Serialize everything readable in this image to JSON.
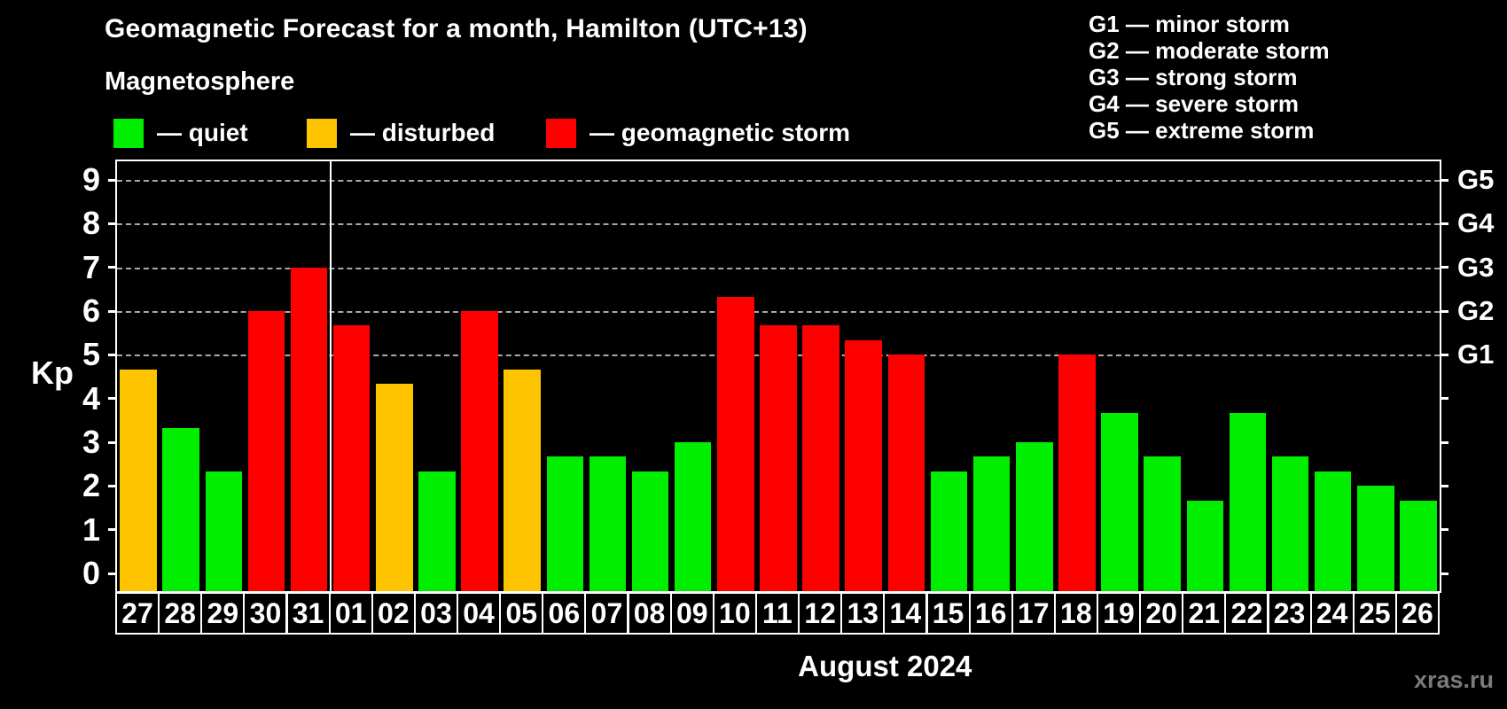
{
  "header": {
    "title": "Geomagnetic Forecast for a month, Hamilton (UTC+13)",
    "subtitle": "Magnetosphere"
  },
  "series_legend": {
    "items": [
      {
        "status": "quiet",
        "label": "— quiet",
        "color": "#00EE00"
      },
      {
        "status": "disturbed",
        "label": "— disturbed",
        "color": "#FFC400"
      },
      {
        "status": "storm",
        "label": "— geomagnetic storm",
        "color": "#FF0000"
      }
    ]
  },
  "storm_scale_legend": {
    "items": [
      {
        "text": "G1 — minor storm"
      },
      {
        "text": "G2 — moderate storm"
      },
      {
        "text": "G3 — strong storm"
      },
      {
        "text": "G4 — severe storm"
      },
      {
        "text": "G5 — extreme storm"
      }
    ]
  },
  "chart_data": {
    "type": "bar",
    "title": "Geomagnetic Forecast for a month, Hamilton (UTC+13)",
    "ylabel": "Kp",
    "xlabel": "August 2024",
    "ylim": [
      -0.4,
      9.45
    ],
    "yticks": [
      0,
      1,
      2,
      3,
      4,
      5,
      6,
      7,
      8,
      9
    ],
    "gridlines_at": [
      5,
      6,
      7,
      8,
      9
    ],
    "grid": "dashed horizontal lines at storm levels only",
    "right_axis_labels": [
      {
        "kp": 5,
        "label": "G1"
      },
      {
        "kp": 6,
        "label": "G2"
      },
      {
        "kp": 7,
        "label": "G3"
      },
      {
        "kp": 8,
        "label": "G4"
      },
      {
        "kp": 9,
        "label": "G5"
      }
    ],
    "month_separator_after": "31",
    "categories": [
      "27",
      "28",
      "29",
      "30",
      "31",
      "01",
      "02",
      "03",
      "04",
      "05",
      "06",
      "07",
      "08",
      "09",
      "10",
      "11",
      "12",
      "13",
      "14",
      "15",
      "16",
      "17",
      "18",
      "19",
      "20",
      "21",
      "22",
      "23",
      "24",
      "25",
      "26"
    ],
    "values": [
      4.67,
      3.33,
      2.33,
      6,
      7,
      5.67,
      4.33,
      2.33,
      6,
      4.67,
      2.67,
      2.67,
      2.33,
      3,
      6.33,
      5.67,
      5.67,
      5.33,
      5,
      2.33,
      2.67,
      3,
      5,
      3.67,
      2.67,
      1.67,
      3.67,
      2.67,
      2.33,
      2,
      1.67
    ],
    "statuses": [
      "disturbed",
      "quiet",
      "quiet",
      "storm",
      "storm",
      "storm",
      "disturbed",
      "quiet",
      "storm",
      "disturbed",
      "quiet",
      "quiet",
      "quiet",
      "quiet",
      "storm",
      "storm",
      "storm",
      "storm",
      "storm",
      "quiet",
      "quiet",
      "quiet",
      "storm",
      "quiet",
      "quiet",
      "quiet",
      "quiet",
      "quiet",
      "quiet",
      "quiet",
      "quiet"
    ],
    "status_colors": {
      "quiet": "#00EE00",
      "disturbed": "#FFC400",
      "storm": "#FF0000"
    }
  },
  "footer": {
    "watermark": "xras.ru"
  }
}
